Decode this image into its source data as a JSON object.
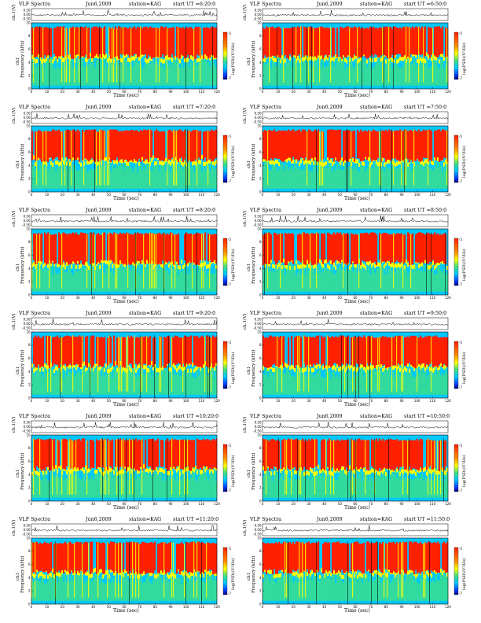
{
  "figure": {
    "colors": {
      "background": "#ffffff",
      "low": "#00c8ff",
      "mid_low": "#40e080",
      "mid": "#ffff00",
      "high": "#ff2000",
      "deep": "#000080"
    },
    "panels": [
      {
        "title_left": "VLF Spectra",
        "date": "Jun6,2009",
        "station": "station=KAG",
        "start": "start  UT  =6:20:0"
      },
      {
        "title_left": "VLF Spectra",
        "date": "Jun6,2009",
        "station": "station=KAG",
        "start": "start  UT  =6:50:0"
      },
      {
        "title_left": "VLF Spectra",
        "date": "Jun6,2009",
        "station": "station=KAG",
        "start": "start  UT  =7:20:0"
      },
      {
        "title_left": "VLF Spectra",
        "date": "Jun6,2009",
        "station": "station=KAG",
        "start": "start  UT  =7:50:0"
      },
      {
        "title_left": "VLF Spectra",
        "date": "Jun6,2009",
        "station": "station=KAG",
        "start": "start  UT  =8:20:0"
      },
      {
        "title_left": "VLF Spectra",
        "date": "Jun6,2009",
        "station": "station=KAG",
        "start": "start  UT  =8:50:0"
      },
      {
        "title_left": "VLF Spectra",
        "date": "Jun6,2009",
        "station": "station=KAG",
        "start": "start  UT  =9:20:0"
      },
      {
        "title_left": "VLF Spectra",
        "date": "Jun6,2009",
        "station": "station=KAG",
        "start": "start  UT  =9:50:0"
      },
      {
        "title_left": "VLF Spectra",
        "date": "Jun6,2009",
        "station": "station=KAG",
        "start": "start  UT  =10:20:0"
      },
      {
        "title_left": "VLF Spectra",
        "date": "Jun6,2009",
        "station": "station=KAG",
        "start": "start  UT  =10:50:0"
      },
      {
        "title_left": "VLF Spectra",
        "date": "Jun6,2009",
        "station": "station=KAG",
        "start": "start  UT  =11:20:0"
      },
      {
        "title_left": "VLF Spectra",
        "date": "Jun6,2009",
        "station": "station=KAG",
        "start": "start  UT  =11:50:0"
      }
    ]
  },
  "chart_data": {
    "type": "heatmap",
    "panel_count": 12,
    "layout": "6 rows x 2 columns",
    "time_series_ylabel": "ch.1(V)",
    "time_series_yticks": [
      0.5,
      0.0,
      -0.5
    ],
    "time_series_ytick_labels": [
      "0.50",
      "0.00",
      "-0.50"
    ],
    "spectrogram_ylabel_line1": "ch1",
    "spectrogram_ylabel_line2": "Frequency (kHz)",
    "spectrogram_yticks": [
      0,
      2,
      4,
      6,
      8,
      10
    ],
    "xlabel": "Time (sec)",
    "xlim": [
      0,
      120
    ],
    "xticks": [
      0,
      10,
      20,
      30,
      40,
      50,
      60,
      70,
      80,
      90,
      100,
      110,
      120
    ],
    "ylim_khz": [
      0,
      10
    ],
    "colorbar_label": "log(PSD)(V²/Hz)",
    "colorbar_ticks": [
      "-5",
      "-7"
    ],
    "dominant_band_khz": [
      4.5,
      9.5
    ],
    "band_color": "high"
  }
}
